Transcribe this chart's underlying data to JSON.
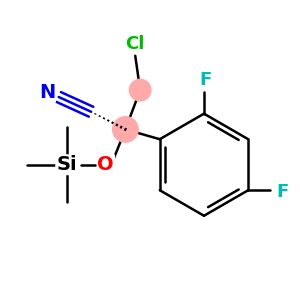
{
  "background_color": "#ffffff",
  "bond_color": "#000000",
  "colors": {
    "N": "#0000ee",
    "O": "#ff0000",
    "F": "#00bbbb",
    "Cl": "#00bb00",
    "Si": "#000000",
    "stereo": "#ffaaaa"
  },
  "figsize": [
    3.0,
    3.0
  ],
  "dpi": 100
}
